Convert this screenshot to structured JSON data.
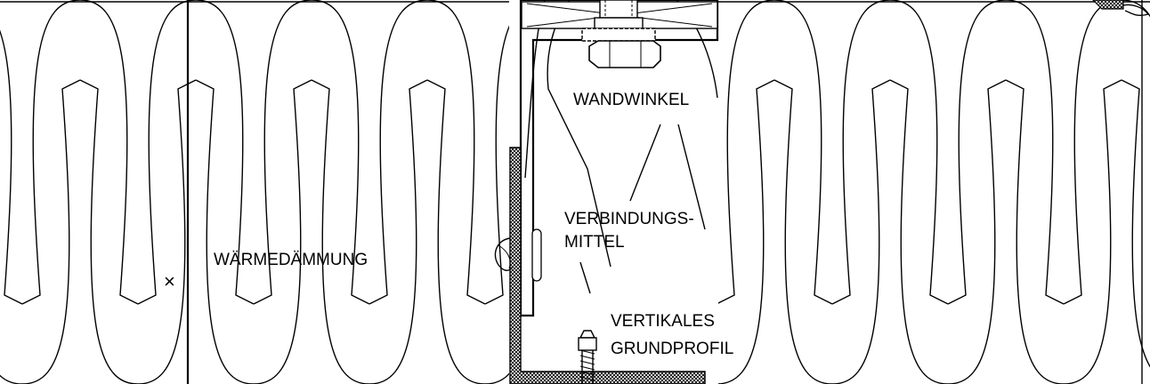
{
  "labels": {
    "insulation": "WÄRMEDÄMMUNG",
    "wall_bracket": "WANDWINKEL",
    "fastener_line1": "VERBINDUNGS-",
    "fastener_line2": "MITTEL",
    "profile_line1": "VERTIKALES",
    "profile_line2": "GRUNDPROFIL",
    "cross_mark": "×"
  }
}
